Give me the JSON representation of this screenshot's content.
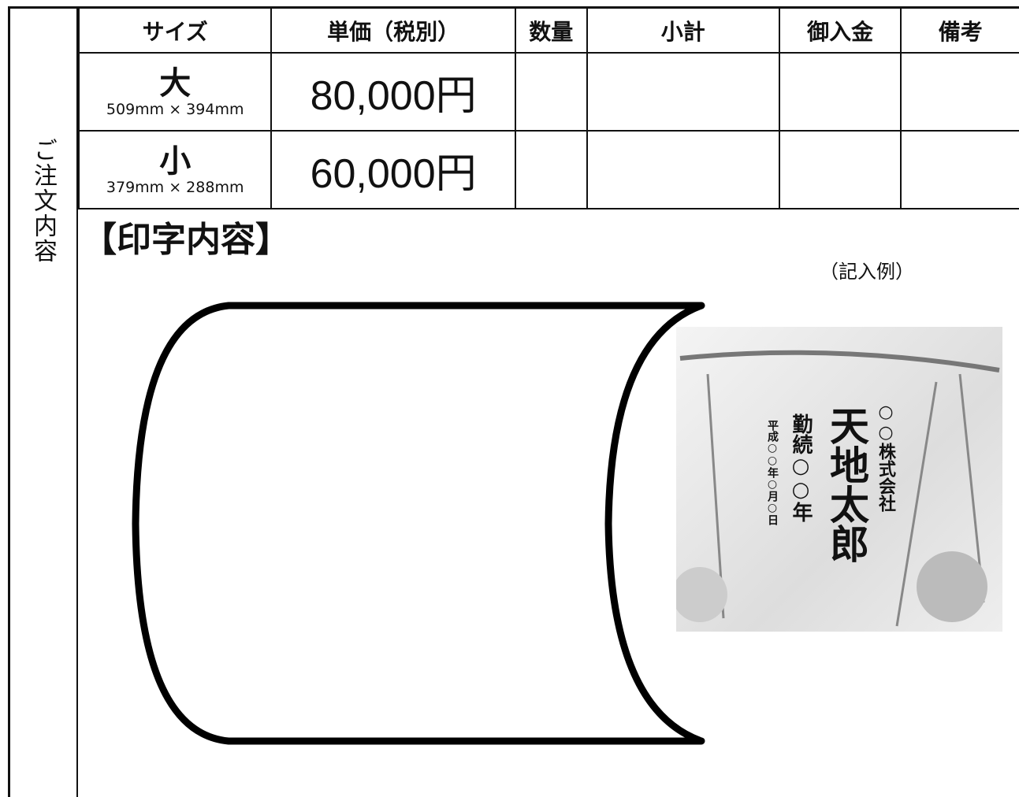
{
  "side_label": "ご注文内容",
  "table": {
    "header": [
      "サイズ",
      "単価（税別）",
      "数量",
      "小計",
      "御入金",
      "備考"
    ],
    "rows": [
      {
        "size": "大",
        "dimensions": "509mm × 394mm",
        "price": "80,000円"
      },
      {
        "size": "小",
        "dimensions": "379mm × 288mm",
        "price": "60,000円"
      }
    ]
  },
  "section_title": "【印字内容】",
  "example": {
    "label": "（記入例）",
    "company": "○○株式会社",
    "name": "天地太郎",
    "tenure": "勤続○○年",
    "date": "平成○○年○月○日"
  }
}
